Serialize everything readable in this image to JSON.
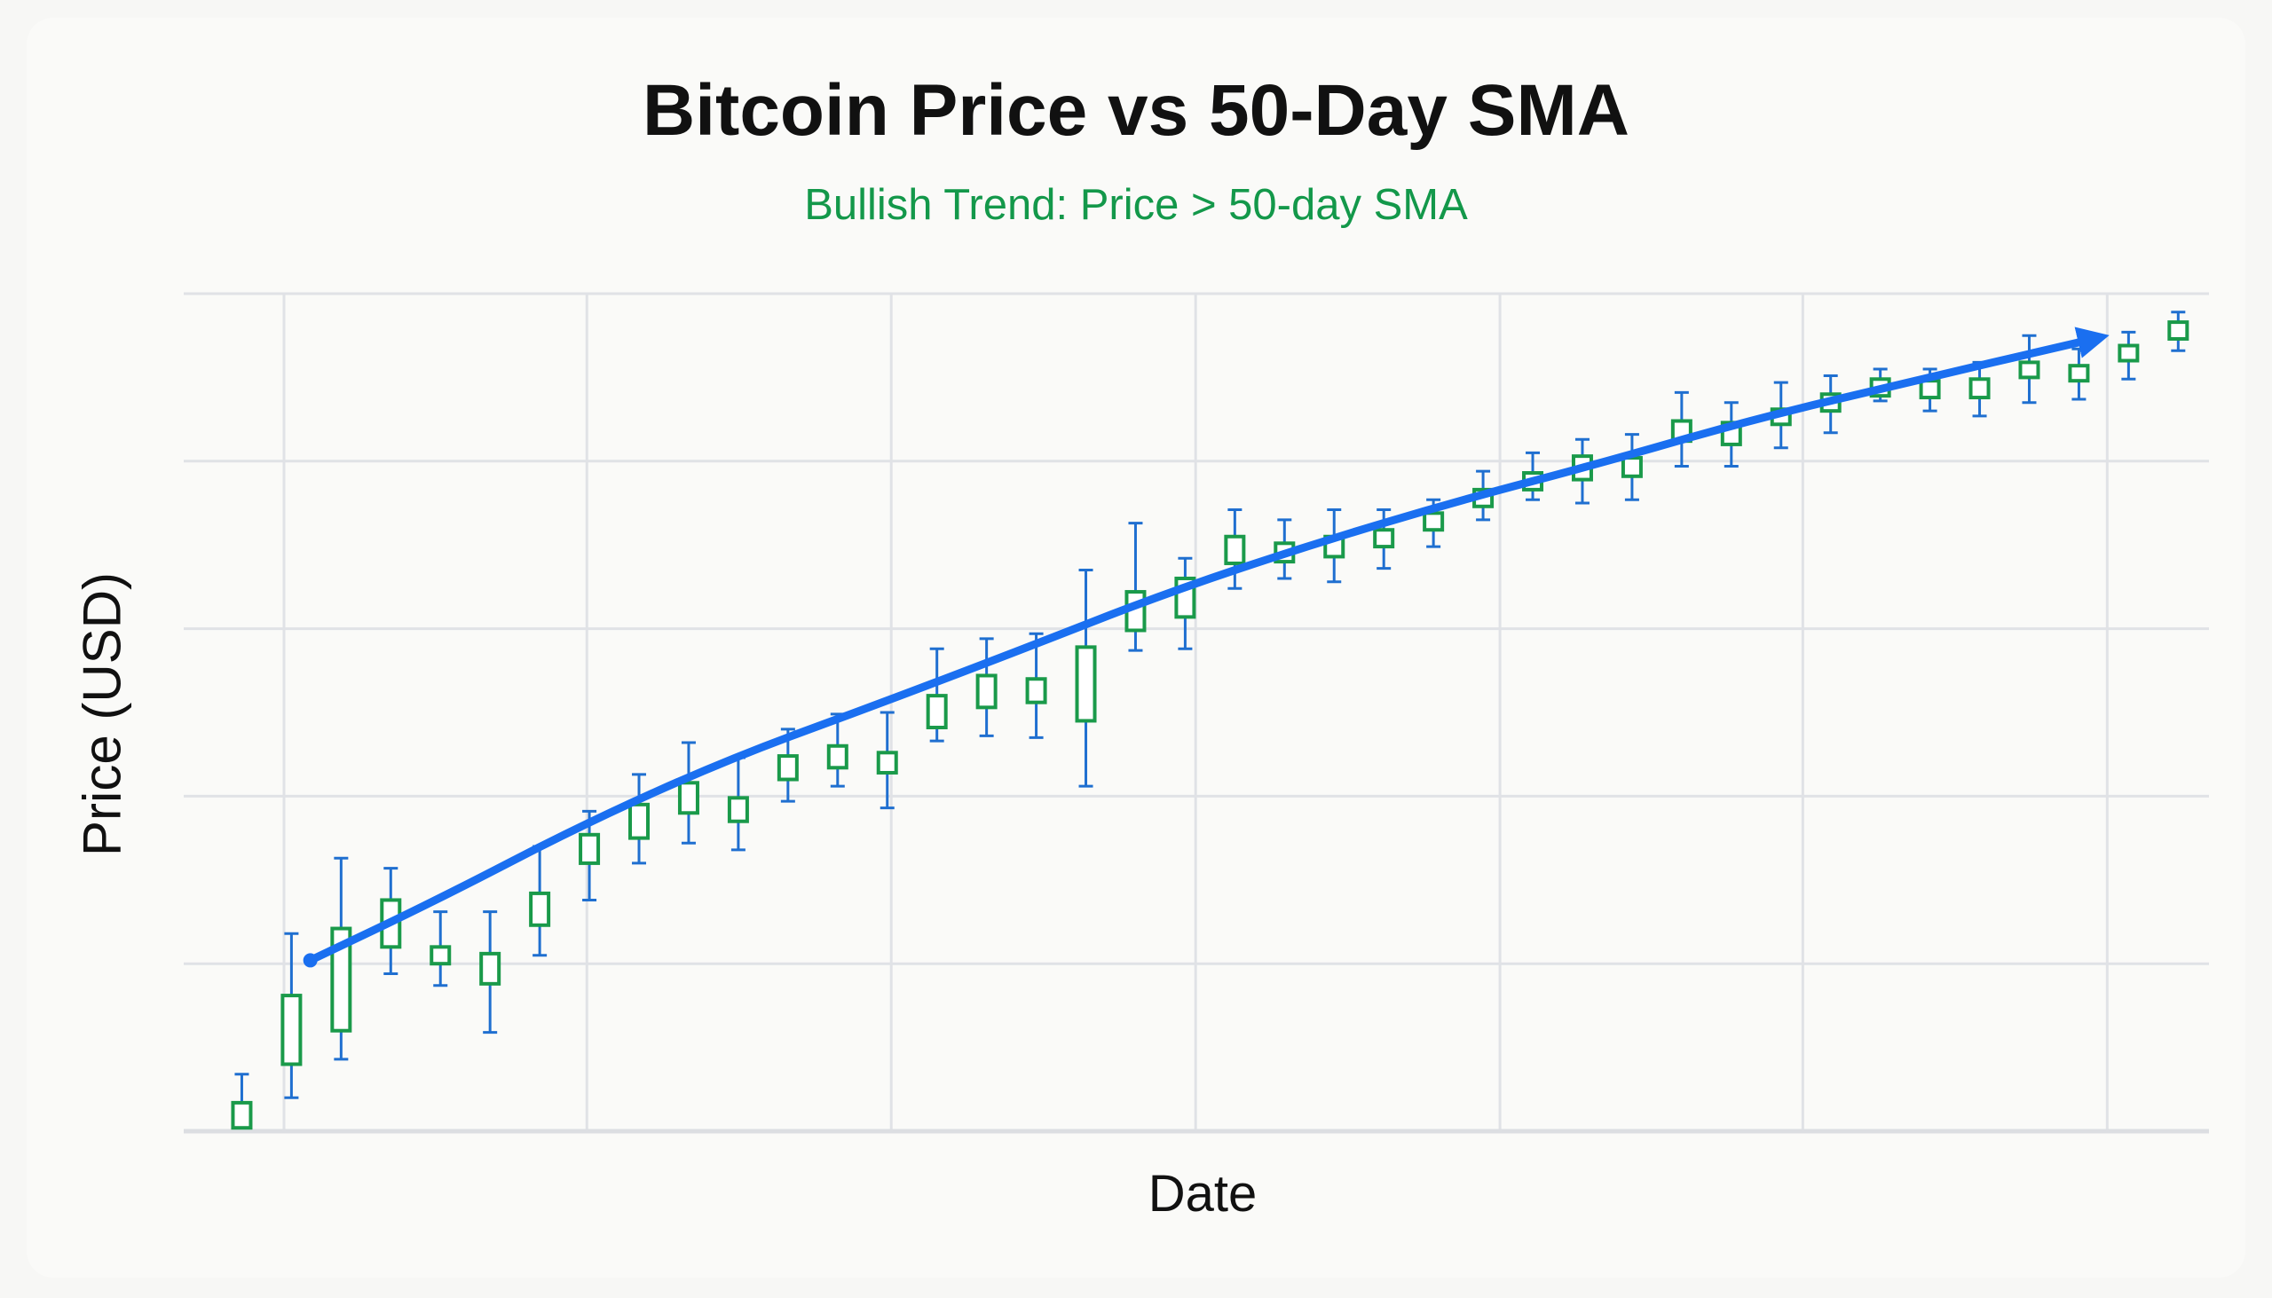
{
  "chart_data": {
    "type": "candlestick",
    "title": "Bitcoin Price vs 50-Day SMA",
    "subtitle": "Bullish Trend: Price > 50-day SMA",
    "xlabel": "Date",
    "ylabel": "Price (USD)",
    "ylim": [
      0,
      5
    ],
    "xlim": [
      -1.17,
      39.62
    ],
    "grid": true,
    "colors": {
      "candle_body": "#1a9a4a",
      "wick": "#1f6fd0",
      "sma": "#1a6ff0",
      "subtitle": "#13984a"
    },
    "candles": [
      {
        "high": 0.34,
        "top": 0.17,
        "bottom": 0.02,
        "low": 0.02
      },
      {
        "high": 1.18,
        "top": 0.81,
        "bottom": 0.4,
        "low": 0.2
      },
      {
        "high": 1.63,
        "top": 1.21,
        "bottom": 0.6,
        "low": 0.43
      },
      {
        "high": 1.57,
        "top": 1.38,
        "bottom": 1.1,
        "low": 0.94
      },
      {
        "high": 1.31,
        "top": 1.1,
        "bottom": 1.0,
        "low": 0.87
      },
      {
        "high": 1.31,
        "top": 1.06,
        "bottom": 0.88,
        "low": 0.59
      },
      {
        "high": 1.7,
        "top": 1.42,
        "bottom": 1.23,
        "low": 1.05
      },
      {
        "high": 1.91,
        "top": 1.77,
        "bottom": 1.6,
        "low": 1.38
      },
      {
        "high": 2.13,
        "top": 1.95,
        "bottom": 1.75,
        "low": 1.6
      },
      {
        "high": 2.32,
        "top": 2.08,
        "bottom": 1.9,
        "low": 1.72
      },
      {
        "high": 2.23,
        "top": 1.99,
        "bottom": 1.85,
        "low": 1.68
      },
      {
        "high": 2.4,
        "top": 2.24,
        "bottom": 2.1,
        "low": 1.97
      },
      {
        "high": 2.49,
        "top": 2.3,
        "bottom": 2.17,
        "low": 2.06
      },
      {
        "high": 2.5,
        "top": 2.26,
        "bottom": 2.14,
        "low": 1.93
      },
      {
        "high": 2.88,
        "top": 2.6,
        "bottom": 2.41,
        "low": 2.33
      },
      {
        "high": 2.94,
        "top": 2.72,
        "bottom": 2.53,
        "low": 2.36
      },
      {
        "high": 2.97,
        "top": 2.7,
        "bottom": 2.56,
        "low": 2.35
      },
      {
        "high": 3.35,
        "top": 2.89,
        "bottom": 2.45,
        "low": 2.06
      },
      {
        "high": 3.63,
        "top": 3.22,
        "bottom": 2.99,
        "low": 2.87
      },
      {
        "high": 3.42,
        "top": 3.3,
        "bottom": 3.07,
        "low": 2.88
      },
      {
        "high": 3.71,
        "top": 3.55,
        "bottom": 3.39,
        "low": 3.24
      },
      {
        "high": 3.65,
        "top": 3.51,
        "bottom": 3.4,
        "low": 3.3
      },
      {
        "high": 3.71,
        "top": 3.55,
        "bottom": 3.43,
        "low": 3.28
      },
      {
        "high": 3.71,
        "top": 3.59,
        "bottom": 3.49,
        "low": 3.36
      },
      {
        "high": 3.77,
        "top": 3.69,
        "bottom": 3.59,
        "low": 3.49
      },
      {
        "high": 3.94,
        "top": 3.83,
        "bottom": 3.73,
        "low": 3.65
      },
      {
        "high": 4.05,
        "top": 3.93,
        "bottom": 3.83,
        "low": 3.77
      },
      {
        "high": 4.13,
        "top": 4.03,
        "bottom": 3.89,
        "low": 3.75
      },
      {
        "high": 4.16,
        "top": 4.02,
        "bottom": 3.91,
        "low": 3.77
      },
      {
        "high": 4.41,
        "top": 4.24,
        "bottom": 4.12,
        "low": 3.97
      },
      {
        "high": 4.35,
        "top": 4.23,
        "bottom": 4.1,
        "low": 3.97
      },
      {
        "high": 4.47,
        "top": 4.31,
        "bottom": 4.22,
        "low": 4.08
      },
      {
        "high": 4.51,
        "top": 4.4,
        "bottom": 4.3,
        "low": 4.17
      },
      {
        "high": 4.55,
        "top": 4.49,
        "bottom": 4.39,
        "low": 4.36
      },
      {
        "high": 4.55,
        "top": 4.48,
        "bottom": 4.38,
        "low": 4.3
      },
      {
        "high": 4.59,
        "top": 4.49,
        "bottom": 4.38,
        "low": 4.27
      },
      {
        "high": 4.75,
        "top": 4.59,
        "bottom": 4.5,
        "low": 4.35
      },
      {
        "high": 4.67,
        "top": 4.57,
        "bottom": 4.48,
        "low": 4.37
      },
      {
        "high": 4.77,
        "top": 4.69,
        "bottom": 4.6,
        "low": 4.49
      },
      {
        "high": 4.89,
        "top": 4.83,
        "bottom": 4.73,
        "low": 4.66
      }
    ],
    "sma": [
      [
        1.38,
        1.02
      ],
      [
        3.93,
        1.38
      ],
      [
        6.86,
        1.83
      ],
      [
        9.79,
        2.22
      ],
      [
        12.73,
        2.54
      ],
      [
        15.66,
        2.87
      ],
      [
        18.59,
        3.21
      ],
      [
        21.52,
        3.5
      ],
      [
        24.46,
        3.76
      ],
      [
        27.39,
        3.99
      ],
      [
        30.32,
        4.24
      ],
      [
        33.25,
        4.45
      ],
      [
        37.3,
        4.73
      ]
    ]
  }
}
